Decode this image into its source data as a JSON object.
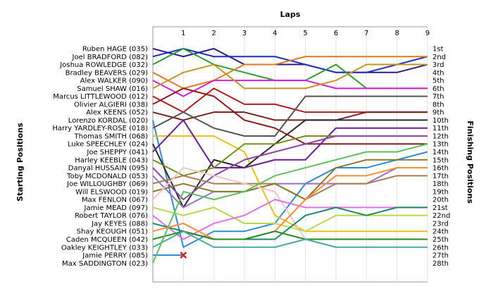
{
  "chart_data": {
    "type": "line",
    "title": "",
    "xlabel": "Laps",
    "ylabel_left": "Starting Positions",
    "ylabel_right": "Finishing Positions",
    "x": [
      1,
      2,
      3,
      4,
      5,
      6,
      7,
      8,
      9
    ],
    "xlim": [
      0,
      9
    ],
    "ylim": [
      1,
      28
    ],
    "grid": true,
    "legend": "none",
    "finishing_labels": [
      "1st",
      "2nd",
      "3rd",
      "4th",
      "5th",
      "6th",
      "7th",
      "8th",
      "9th",
      "10th",
      "11th",
      "12th",
      "13th",
      "14th",
      "15th",
      "16th",
      "17th",
      "18th",
      "19th",
      "20th",
      "21st",
      "22nd",
      "23rd",
      "24th",
      "25th",
      "26th",
      "27th",
      "28th"
    ],
    "series": [
      {
        "name": "Ruben HAGE (035)",
        "color": "#2e1a8a",
        "positions": [
          1,
          2,
          1,
          3,
          3,
          3,
          4,
          4,
          4,
          3
        ]
      },
      {
        "name": "Joel BRADFORD (082)",
        "color": "#1f2fbf",
        "positions": [
          2,
          1,
          2,
          2,
          2,
          3,
          4,
          4,
          3,
          2
        ]
      },
      {
        "name": "Joshua ROWLEDGE (032)",
        "color": "#2aa02a",
        "positions": [
          3,
          1,
          3,
          4,
          5,
          5,
          3,
          6,
          6,
          6
        ]
      },
      {
        "name": "Bradley BEAVERS (029)",
        "color": "#e07a1f",
        "positions": [
          4,
          6,
          5,
          3,
          3,
          2,
          2,
          2,
          2,
          2
        ]
      },
      {
        "name": "Alex WALKER (090)",
        "color": "#d81bd8",
        "positions": [
          5,
          7,
          5,
          5,
          5,
          5,
          6,
          6,
          6,
          6
        ]
      },
      {
        "name": "Samuel SHAW (016)",
        "color": "#c4961e",
        "positions": [
          6,
          4,
          3,
          6,
          6,
          6,
          5,
          3,
          3,
          3
        ]
      },
      {
        "name": "Marcus LITTLEWOOD (012)",
        "color": "#b71c1c",
        "positions": [
          7,
          9,
          6,
          8,
          8,
          9,
          9,
          9,
          9,
          9
        ]
      },
      {
        "name": "Olivier ALGIERI (038)",
        "color": "#8c1b1b",
        "positions": [
          8,
          6,
          7,
          10,
          11,
          13,
          13,
          13,
          13,
          13
        ]
      },
      {
        "name": "Alex KEENS (052)",
        "color": "#7a1f1f",
        "positions": [
          9,
          10,
          9,
          9,
          10,
          10,
          10,
          9,
          9,
          9
        ]
      },
      {
        "name": "Lorenzo KORDAL (020)",
        "color": "#2e8bd8",
        "positions": [
          10,
          26,
          24,
          24,
          23,
          18,
          16,
          16,
          15,
          14
        ]
      },
      {
        "name": "Harry YARDLEY-ROSE (018)",
        "color": "#555555",
        "positions": [
          11,
          9,
          11,
          12,
          12,
          7,
          7,
          7,
          7,
          7
        ]
      },
      {
        "name": "Thomas SMITH (068)",
        "color": "#e8c21a",
        "positions": [
          12,
          12,
          12,
          14,
          22,
          24,
          24,
          24,
          24,
          24
        ]
      },
      {
        "name": "Luke SPEECHLEY (024)",
        "color": "#2a2a2a",
        "positions": [
          13,
          21,
          15,
          16,
          13,
          10,
          10,
          10,
          10,
          10
        ]
      },
      {
        "name": "Joe SHEPPY (041)",
        "color": "#6a1b9a",
        "positions": [
          14,
          10,
          16,
          16,
          15,
          15,
          11,
          11,
          11,
          11
        ]
      },
      {
        "name": "Harley KEEBLE (043)",
        "color": "#7c8f1c",
        "positions": [
          15,
          17,
          16,
          13,
          13,
          12,
          12,
          12,
          12,
          12
        ]
      },
      {
        "name": "Danyal HUSSAIN (095)",
        "color": "#8e44ad",
        "positions": [
          16,
          20,
          17,
          15,
          14,
          13,
          12,
          12,
          12,
          12
        ]
      },
      {
        "name": "Toby MCDONALD (053)",
        "color": "#9b6fc7",
        "positions": [
          17,
          21,
          19,
          19,
          18,
          18,
          18,
          18,
          16,
          16
        ]
      },
      {
        "name": "Joe WILLOUGHBY (069)",
        "color": "#a67c52",
        "positions": [
          18,
          17,
          18,
          18,
          18,
          20,
          18,
          18,
          17,
          17
        ]
      },
      {
        "name": "Will ELSWOOD (019)",
        "color": "#8a7a2a",
        "positions": [
          19,
          18,
          19,
          19,
          18,
          20,
          16,
          15,
          15,
          15
        ]
      },
      {
        "name": "Max FENLON (067)",
        "color": "#f2c4c4",
        "positions": [
          20,
          16,
          17,
          18,
          19,
          25,
          25,
          25,
          25,
          25
        ]
      },
      {
        "name": "Jamie MEAD (097)",
        "color": "#b8d84a",
        "positions": [
          21,
          22,
          21,
          23,
          23,
          24,
          22,
          22,
          22,
          22
        ]
      },
      {
        "name": "Robert TAYLOR (076)",
        "color": "#e56fe5",
        "positions": [
          22,
          25,
          23,
          22,
          20,
          21,
          21,
          21,
          21,
          21
        ]
      },
      {
        "name": "Jay KEYES (088)",
        "color": "#1a8a6a",
        "positions": [
          23,
          24,
          25,
          25,
          25,
          22,
          21,
          22,
          21,
          21
        ]
      },
      {
        "name": "Shay KEOUGH (051)",
        "color": "#ff8c3a",
        "positions": [
          24,
          23,
          25,
          25,
          24,
          20,
          17,
          17,
          16,
          16
        ]
      },
      {
        "name": "Caden MCQUEEN (042)",
        "color": "#228b22",
        "positions": [
          25,
          24,
          25,
          25,
          24,
          25,
          25,
          25,
          25,
          25
        ]
      },
      {
        "name": "Oakley KEIGHTLEY (033)",
        "color": "#4aa8a0",
        "positions": [
          26,
          24,
          26,
          26,
          26,
          25,
          26,
          26,
          26,
          26
        ]
      },
      {
        "name": "Jamie PERRY (085)",
        "color": "#2e8bd8",
        "positions": [
          27,
          27
        ]
      },
      {
        "name": "Max SADDINGTON (023)",
        "color": "#5ec05e",
        "positions": [
          28,
          19,
          20,
          19,
          17,
          16,
          15,
          14,
          14,
          13
        ]
      }
    ],
    "retired_marker": {
      "series": "Jamie PERRY (085)",
      "lap": 1,
      "position": 27,
      "color": "#cc2222"
    }
  }
}
